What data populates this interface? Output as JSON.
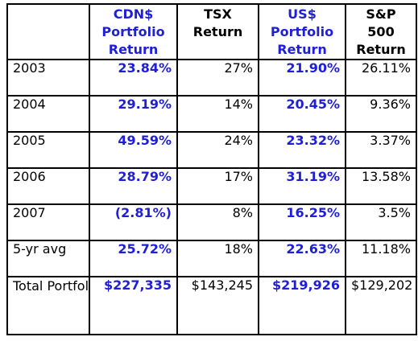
{
  "table": {
    "headers": [
      {
        "text": "",
        "style": "black"
      },
      {
        "text": "CDN$\nPortfolio\nReturn",
        "style": "blue"
      },
      {
        "text": "TSX\nReturn",
        "style": "black"
      },
      {
        "text": "US$\nPortfolio\nReturn",
        "style": "blue"
      },
      {
        "text": "S&P\n500\nReturn",
        "style": "black"
      }
    ],
    "rows": [
      {
        "label": "2003",
        "cdn_portfolio": "23.84%",
        "tsx": "27%",
        "us_portfolio": "21.90%",
        "sp500": "26.11%"
      },
      {
        "label": "2004",
        "cdn_portfolio": "29.19%",
        "tsx": "14%",
        "us_portfolio": "20.45%",
        "sp500": "9.36%"
      },
      {
        "label": "2005",
        "cdn_portfolio": "49.59%",
        "tsx": "24%",
        "us_portfolio": "23.32%",
        "sp500": "3.37%"
      },
      {
        "label": "2006",
        "cdn_portfolio": "28.79%",
        "tsx": "17%",
        "us_portfolio": "31.19%",
        "sp500": "13.58%"
      },
      {
        "label": "2007",
        "cdn_portfolio": "(2.81%)",
        "tsx": "8%",
        "us_portfolio": "16.25%",
        "sp500": "3.5%"
      },
      {
        "label": "5-yr avg",
        "cdn_portfolio": "25.72%",
        "tsx": "18%",
        "us_portfolio": "22.63%",
        "sp500": "11.18%"
      }
    ],
    "total": {
      "label": "Total Portfolio Return",
      "cdn_portfolio": "$227,335",
      "tsx": "$143,245",
      "us_portfolio": "$219,926",
      "sp500": "$129,202"
    }
  },
  "colors": {
    "portfolio_text": "#1f1fd6",
    "border": "#000000",
    "background": "#ffffff"
  }
}
